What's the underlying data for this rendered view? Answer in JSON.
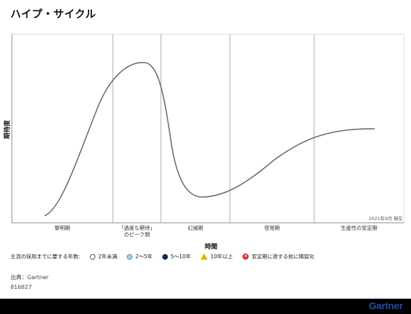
{
  "title": "ハイプ・サイクル",
  "chart_data": {
    "type": "line",
    "title": "ハイプ・サイクル",
    "ylabel": "期待度",
    "xlabel": "時間",
    "phases": [
      "黎明期",
      "「過度な期待」\nのピーク期",
      "幻滅期",
      "啓発期",
      "生産性の安定期"
    ],
    "date_label": "2021年9月 現在",
    "curve_shape": "hype-cycle"
  },
  "legend": {
    "title": "主流の採用までに要する年数:",
    "items": [
      {
        "label": "2年未満",
        "icon": "empty-circle-icon",
        "color": "#ffffff"
      },
      {
        "label": "2〜5年",
        "icon": "light-blue-circle-icon",
        "color": "#a9d3ea"
      },
      {
        "label": "5〜10年",
        "icon": "dark-blue-circle-icon",
        "color": "#0b2a5b"
      },
      {
        "label": "10年以上",
        "icon": "yellow-triangle-icon",
        "color": "#e0b400"
      },
      {
        "label": "安定期に達する前に陳腐化",
        "icon": "red-x-circle-icon",
        "color": "#d32f2f"
      }
    ]
  },
  "source": "出典：Gartner",
  "doc_id": "816827",
  "brand": "Gartner"
}
